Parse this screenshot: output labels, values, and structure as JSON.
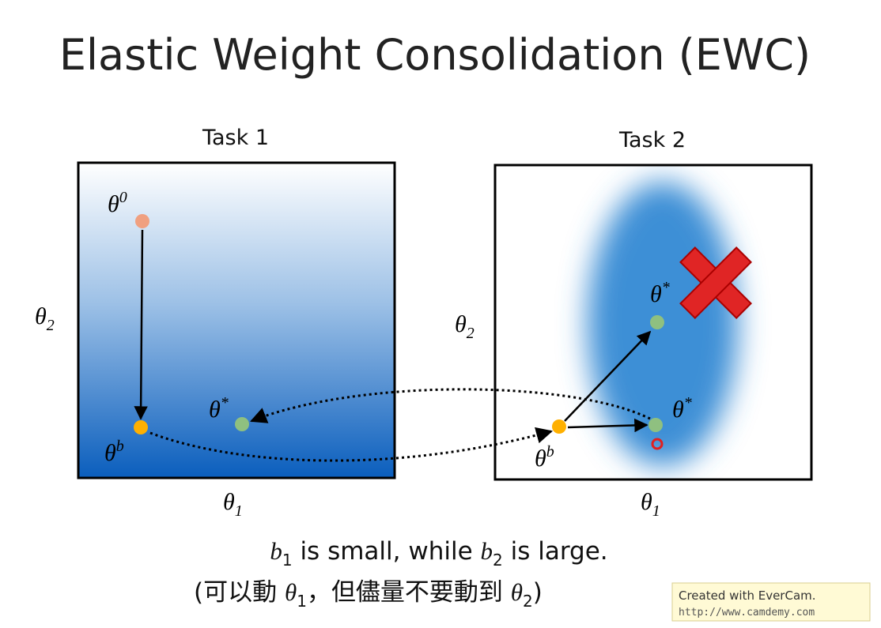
{
  "title": "Elastic Weight Consolidation (EWC)",
  "panels": [
    {
      "title": "Task 1",
      "x_axis": {
        "base": "θ",
        "sub": "1"
      },
      "y_axis": {
        "base": "θ",
        "sub": "2"
      },
      "points": [
        {
          "base": "θ",
          "sup": "0"
        },
        {
          "base": "θ",
          "sup": "b"
        },
        {
          "base": "θ",
          "sup": "*"
        }
      ]
    },
    {
      "title": "Task 2",
      "x_axis": {
        "base": "θ",
        "sub": "1"
      },
      "y_axis": {
        "base": "θ",
        "sub": "2"
      },
      "points": [
        {
          "base": "θ",
          "sup": "*"
        },
        {
          "base": "θ",
          "sup": "*"
        },
        {
          "base": "θ",
          "sup": "b"
        }
      ]
    }
  ],
  "caption": {
    "line1": [
      "b",
      "1",
      " is small, while ",
      "b",
      "2",
      " is large."
    ],
    "line2": [
      "(可以動 ",
      "θ",
      "1",
      "，但儘量不要動到 ",
      "θ",
      "2",
      ")"
    ]
  },
  "watermark": {
    "line1": "Created with EverCam.",
    "line2": "http://www.camdemy.com"
  }
}
